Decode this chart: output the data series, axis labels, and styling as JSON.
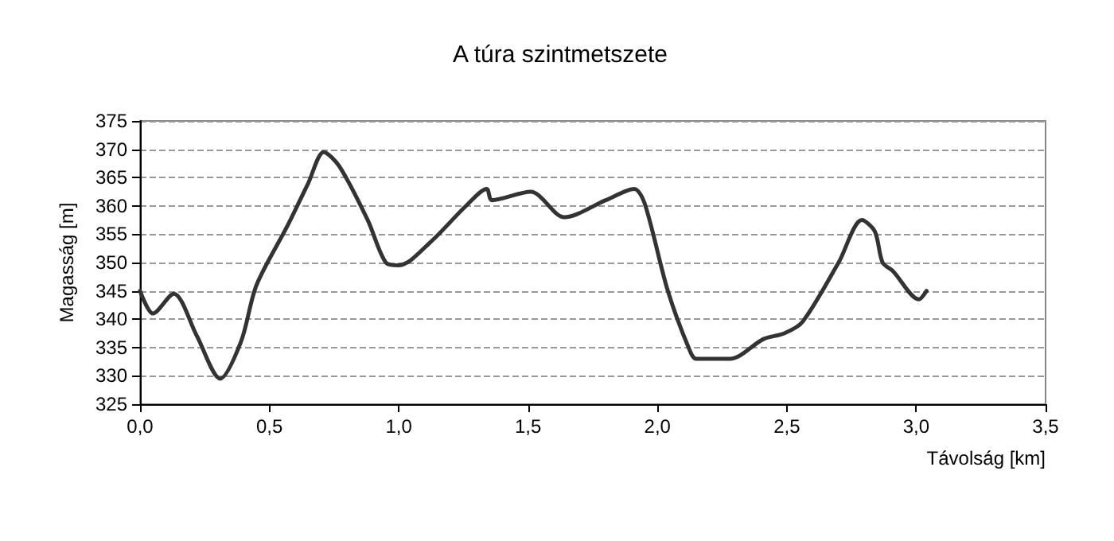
{
  "chart_data": {
    "type": "line",
    "title": "A túra szintmetszete",
    "xlabel": "Távolság [km]",
    "ylabel": "Magasság [m]",
    "x": [
      0,
      0.05,
      0.13,
      0.22,
      0.31,
      0.39,
      0.45,
      0.57,
      0.65,
      0.71,
      0.77,
      0.88,
      0.95,
      1.0,
      1.12,
      1.26,
      1.34,
      1.36,
      1.51,
      1.64,
      1.8,
      1.91,
      1.95,
      2.04,
      2.12,
      2.15,
      2.28,
      2.41,
      2.49,
      2.56,
      2.7,
      2.79,
      2.84,
      2.87,
      2.91,
      3.01,
      3.04
    ],
    "series": [
      {
        "color": "#333333",
        "values": [
          345,
          341,
          344.5,
          337,
          329.5,
          336,
          346,
          356.5,
          364,
          369.5,
          367,
          357.5,
          350,
          349.5,
          353.5,
          360,
          363,
          361,
          362.5,
          358,
          361,
          363,
          360.5,
          345,
          335,
          333,
          333,
          336.5,
          337.5,
          339.5,
          350,
          357.5,
          355.5,
          350,
          348.5,
          343.5,
          345
        ]
      }
    ],
    "xlim": [
      0,
      3.5
    ],
    "xticks": [
      {
        "value": 0,
        "label": "0,0"
      },
      {
        "value": 0.5,
        "label": "0,5"
      },
      {
        "value": 1,
        "label": "1,0"
      },
      {
        "value": 1.5,
        "label": "1,5"
      },
      {
        "value": 2,
        "label": "2,0"
      },
      {
        "value": 2.5,
        "label": "2,5"
      },
      {
        "value": 3,
        "label": "3,0"
      },
      {
        "value": 3.5,
        "label": "3,5"
      }
    ],
    "ylim": [
      325,
      375
    ],
    "yticks": [
      325,
      330,
      335,
      340,
      345,
      350,
      355,
      360,
      365,
      370,
      375
    ],
    "grid": "y",
    "marker": "none",
    "line_style": "solid"
  }
}
